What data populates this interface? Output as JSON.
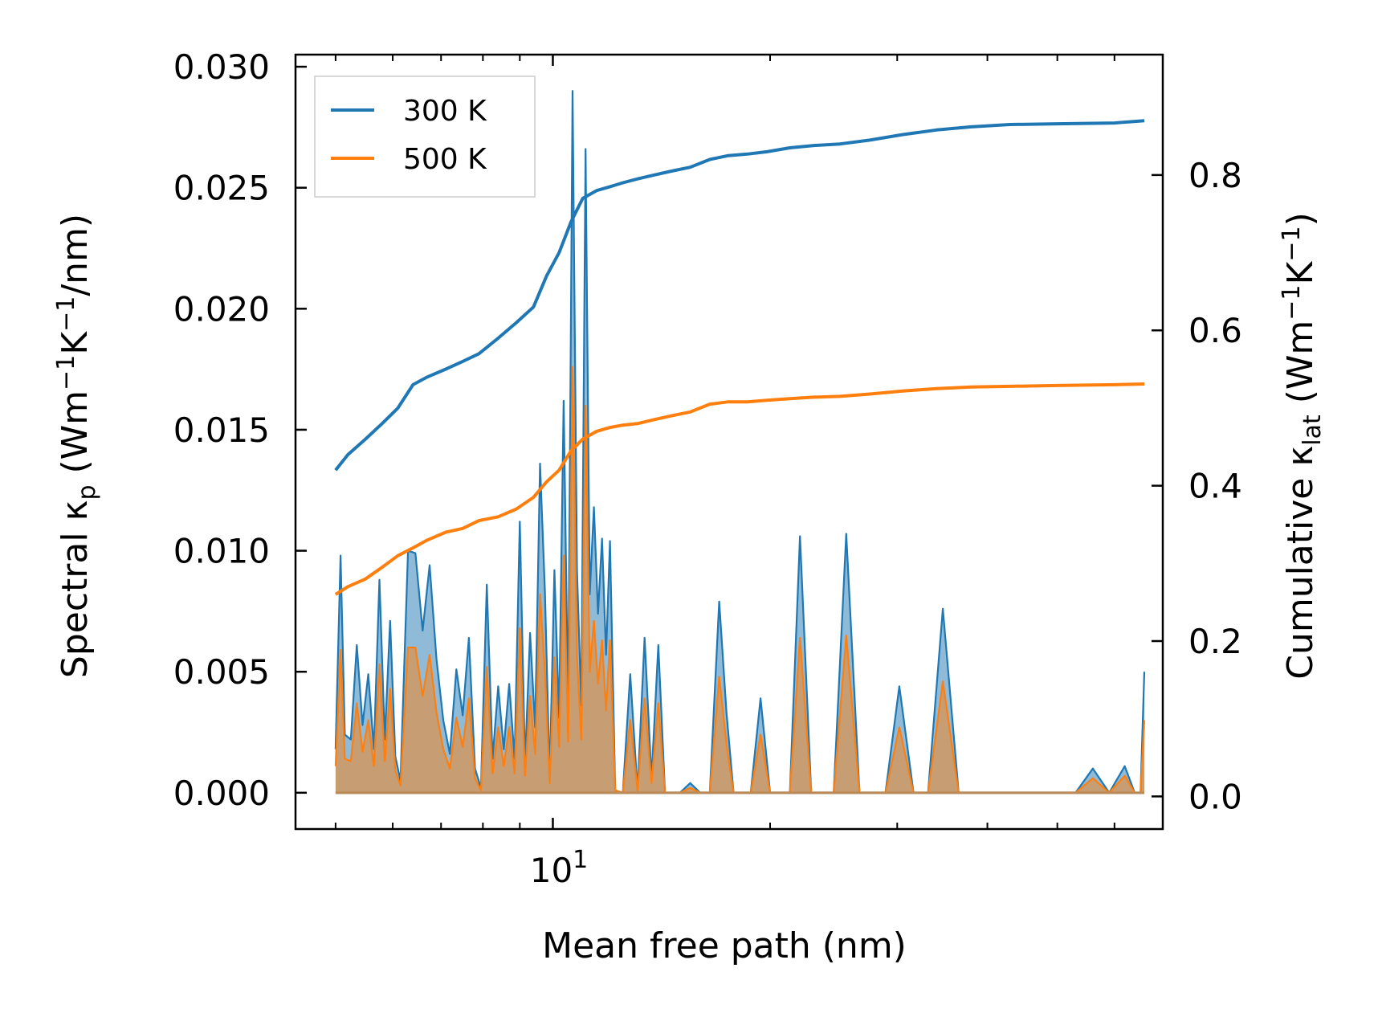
{
  "chart_data": {
    "type": "line",
    "xscale": "log",
    "xlabel": "Mean free path (nm)",
    "ylabel_left": "Spectral κp (Wm−1K−1/nm)",
    "ylabel_right": "Cumulative κlat (Wm−1K−1)",
    "xlim": [
      4.4,
      70.0
    ],
    "ylim_left": [
      -0.0015,
      0.0305
    ],
    "ylim_right": [
      -0.042,
      0.955
    ],
    "x_tick_label": "10^1",
    "y_ticks_left": [
      "0.000",
      "0.005",
      "0.010",
      "0.015",
      "0.020",
      "0.025",
      "0.030"
    ],
    "y_ticks_right": [
      "0.0",
      "0.2",
      "0.4",
      "0.6",
      "0.8"
    ],
    "legend": {
      "placement": "top-left",
      "entries": [
        "300 K",
        "500 K"
      ]
    },
    "colors": {
      "s300": "#1f77b4",
      "s500": "#ff7f0e",
      "fill300": "#1f77b4",
      "fill500": "#ff7f0e"
    },
    "cumulative_series": [
      {
        "name": "300 K",
        "x": [
          5.0,
          5.2,
          5.5,
          5.8,
          6.1,
          6.4,
          6.7,
          7.1,
          7.5,
          7.9,
          8.4,
          8.9,
          9.4,
          9.8,
          10.2,
          10.6,
          11.0,
          11.5,
          12.0,
          12.5,
          13.1,
          13.8,
          14.6,
          15.5,
          16.5,
          17.5,
          18.6,
          19.8,
          21.3,
          23.0,
          25.0,
          27.5,
          30.5,
          34.0,
          38.0,
          43.0,
          50.0,
          60.0,
          66.0
        ],
        "values": [
          0.42,
          0.44,
          0.46,
          0.48,
          0.5,
          0.53,
          0.54,
          0.55,
          0.56,
          0.57,
          0.59,
          0.61,
          0.63,
          0.67,
          0.7,
          0.74,
          0.77,
          0.78,
          0.785,
          0.79,
          0.795,
          0.8,
          0.805,
          0.81,
          0.82,
          0.825,
          0.827,
          0.83,
          0.835,
          0.838,
          0.84,
          0.845,
          0.852,
          0.858,
          0.862,
          0.865,
          0.866,
          0.867,
          0.87
        ]
      },
      {
        "name": "500 K",
        "x": [
          5.0,
          5.2,
          5.5,
          5.8,
          6.1,
          6.4,
          6.7,
          7.1,
          7.5,
          7.9,
          8.4,
          8.9,
          9.4,
          9.8,
          10.2,
          10.6,
          11.0,
          11.5,
          12.0,
          12.5,
          13.1,
          13.8,
          14.6,
          15.5,
          16.5,
          17.5,
          18.6,
          19.8,
          21.3,
          23.0,
          25.0,
          27.5,
          30.5,
          34.0,
          38.0,
          43.0,
          50.0,
          60.0,
          66.0
        ],
        "values": [
          0.26,
          0.27,
          0.28,
          0.295,
          0.31,
          0.32,
          0.33,
          0.34,
          0.345,
          0.355,
          0.36,
          0.37,
          0.385,
          0.405,
          0.42,
          0.445,
          0.46,
          0.47,
          0.475,
          0.478,
          0.48,
          0.485,
          0.49,
          0.495,
          0.505,
          0.508,
          0.508,
          0.51,
          0.512,
          0.514,
          0.515,
          0.518,
          0.522,
          0.525,
          0.527,
          0.528,
          0.529,
          0.53,
          0.531
        ]
      }
    ],
    "spectral_series": [
      {
        "name": "300 K",
        "x": [
          5.0,
          5.08,
          5.15,
          5.25,
          5.35,
          5.45,
          5.55,
          5.65,
          5.75,
          5.85,
          5.95,
          6.05,
          6.15,
          6.3,
          6.45,
          6.6,
          6.75,
          6.9,
          7.05,
          7.2,
          7.35,
          7.5,
          7.65,
          7.8,
          7.95,
          8.1,
          8.25,
          8.4,
          8.55,
          8.7,
          8.85,
          9.0,
          9.15,
          9.3,
          9.45,
          9.6,
          9.75,
          9.9,
          10.05,
          10.2,
          10.35,
          10.5,
          10.65,
          10.8,
          10.95,
          11.1,
          11.25,
          11.4,
          11.55,
          11.7,
          11.85,
          12.0,
          12.2,
          12.5,
          12.8,
          13.1,
          13.4,
          13.7,
          14.0,
          14.3,
          14.6,
          15.0,
          15.5,
          16.0,
          16.5,
          17.0,
          17.4,
          17.8,
          18.3,
          18.8,
          19.4,
          20.0,
          20.6,
          21.3,
          22.0,
          22.8,
          23.6,
          24.5,
          25.5,
          26.6,
          27.7,
          28.9,
          30.2,
          31.6,
          33.1,
          34.7,
          36.5,
          38.4,
          40.4,
          42.6,
          45.0,
          47.5,
          50.0,
          53.0,
          56.0,
          59.0,
          62.0,
          64.0,
          65.2,
          66.0
        ],
        "values": [
          0.0018,
          0.0098,
          0.0024,
          0.0022,
          0.0061,
          0.0028,
          0.0049,
          0.0018,
          0.0088,
          0.0022,
          0.0071,
          0.0015,
          0.0005,
          0.01,
          0.0099,
          0.0067,
          0.0094,
          0.0055,
          0.003,
          0.0016,
          0.0051,
          0.0032,
          0.0064,
          0.001,
          0.0002,
          0.0086,
          0.0014,
          0.0044,
          0.0018,
          0.0045,
          0.0014,
          0.0112,
          0.0012,
          0.0066,
          0.0027,
          0.0136,
          0.0083,
          0.0006,
          0.0092,
          0.0031,
          0.0162,
          0.0034,
          0.029,
          0.0092,
          0.0036,
          0.0266,
          0.0082,
          0.0118,
          0.0074,
          0.0105,
          0.0057,
          0.0104,
          0.0001,
          0.0,
          0.0049,
          0.0001,
          0.0064,
          0.0006,
          0.0061,
          0.0,
          0.0,
          0.0,
          0.0004,
          0.0,
          0.0,
          0.0079,
          0.0033,
          0.0,
          0.0,
          0.0,
          0.0039,
          0.0,
          0.0,
          0.0,
          0.0106,
          0.0,
          0.0,
          0.0,
          0.0107,
          0.0,
          0.0,
          0.0,
          0.0044,
          0.0,
          0.0,
          0.0076,
          0.0,
          0.0,
          0.0,
          0.0,
          0.0,
          0.0,
          0.0,
          0.0,
          0.001,
          0.0,
          0.0011,
          0.0,
          0.0,
          0.005
        ]
      },
      {
        "name": "500 K",
        "x": [
          5.0,
          5.08,
          5.15,
          5.25,
          5.35,
          5.45,
          5.55,
          5.65,
          5.75,
          5.85,
          5.95,
          6.05,
          6.15,
          6.3,
          6.45,
          6.6,
          6.75,
          6.9,
          7.05,
          7.2,
          7.35,
          7.5,
          7.65,
          7.8,
          7.95,
          8.1,
          8.25,
          8.4,
          8.55,
          8.7,
          8.85,
          9.0,
          9.15,
          9.3,
          9.45,
          9.6,
          9.75,
          9.9,
          10.05,
          10.2,
          10.35,
          10.5,
          10.65,
          10.8,
          10.95,
          11.1,
          11.25,
          11.4,
          11.55,
          11.7,
          11.85,
          12.0,
          12.2,
          12.5,
          12.8,
          13.1,
          13.4,
          13.7,
          14.0,
          14.3,
          14.6,
          15.0,
          15.5,
          16.0,
          16.5,
          17.0,
          17.4,
          17.8,
          18.3,
          18.8,
          19.4,
          20.0,
          20.6,
          21.3,
          22.0,
          22.8,
          23.6,
          24.5,
          25.5,
          26.6,
          27.7,
          28.9,
          30.2,
          31.6,
          33.1,
          34.7,
          36.5,
          38.4,
          40.4,
          42.6,
          45.0,
          47.5,
          50.0,
          53.0,
          56.0,
          59.0,
          62.0,
          64.0,
          65.2,
          66.0
        ],
        "values": [
          0.0011,
          0.0059,
          0.0014,
          0.0013,
          0.0037,
          0.0017,
          0.003,
          0.0011,
          0.0053,
          0.0013,
          0.0043,
          0.0009,
          0.0003,
          0.006,
          0.006,
          0.004,
          0.0057,
          0.0033,
          0.0018,
          0.001,
          0.0031,
          0.0019,
          0.0039,
          0.0006,
          0.0001,
          0.0052,
          0.0008,
          0.0027,
          0.0011,
          0.0027,
          0.0008,
          0.0068,
          0.0007,
          0.004,
          0.0016,
          0.0082,
          0.005,
          0.0004,
          0.0056,
          0.0019,
          0.0098,
          0.0021,
          0.0176,
          0.0056,
          0.0022,
          0.016,
          0.005,
          0.0071,
          0.0045,
          0.0063,
          0.0034,
          0.0063,
          0.0001,
          0.0,
          0.003,
          0.0001,
          0.0039,
          0.0004,
          0.0037,
          0.0,
          0.0,
          0.0,
          0.0002,
          0.0,
          0.0,
          0.0048,
          0.002,
          0.0,
          0.0,
          0.0,
          0.0024,
          0.0,
          0.0,
          0.0,
          0.0064,
          0.0,
          0.0,
          0.0,
          0.0065,
          0.0,
          0.0,
          0.0,
          0.0027,
          0.0,
          0.0,
          0.0046,
          0.0,
          0.0,
          0.0,
          0.0,
          0.0,
          0.0,
          0.0,
          0.0,
          0.0006,
          0.0,
          0.0007,
          0.0,
          0.0,
          0.003
        ]
      }
    ]
  }
}
